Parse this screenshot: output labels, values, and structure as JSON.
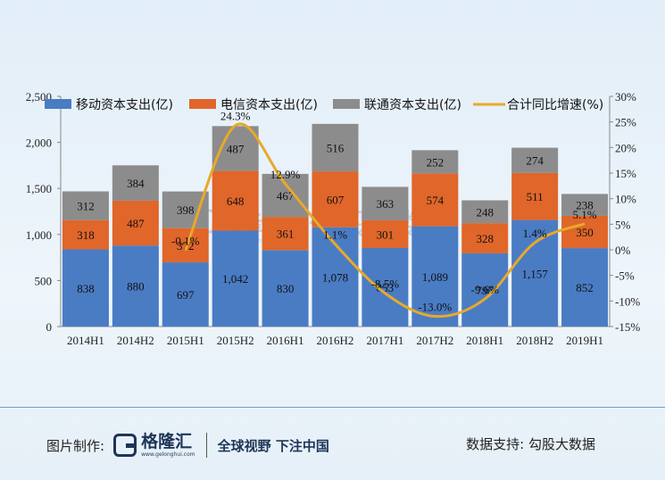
{
  "chart_data": {
    "type": "bar",
    "stacked": true,
    "categories": [
      "2014H1",
      "2014H2",
      "2015H1",
      "2015H2",
      "2016H1",
      "2016H2",
      "2017H1",
      "2017H2",
      "2018H1",
      "2018H2",
      "2019H1"
    ],
    "series": [
      {
        "name": "移动资本支出(亿)",
        "color": "#4a7cc4",
        "values": [
          838,
          880,
          697,
          1042,
          830,
          1078,
          853,
          1089,
          795,
          1157,
          852
        ],
        "labels": [
          "838",
          "880",
          "697",
          "1,042",
          "830",
          "1,078",
          "853",
          "1,089",
          "795",
          "1,157",
          "852"
        ]
      },
      {
        "name": "电信资本支出(亿)",
        "color": "#e0662a",
        "values": [
          318,
          487,
          372,
          648,
          361,
          607,
          301,
          574,
          328,
          511,
          350
        ],
        "labels": [
          "318",
          "487",
          "372",
          "648",
          "361",
          "607",
          "301",
          "574",
          "328",
          "511",
          "350"
        ]
      },
      {
        "name": "联通资本支出(亿)",
        "color": "#8c8c8c",
        "values": [
          312,
          384,
          398,
          487,
          467,
          516,
          363,
          252,
          248,
          274,
          238
        ],
        "labels": [
          "312",
          "384",
          "398",
          "487",
          "467",
          "516",
          "363",
          "252",
          "248",
          "274",
          "238"
        ]
      }
    ],
    "line": {
      "name": "合计同比增速(%)",
      "color": "#e8a92a",
      "x_start_index": 2,
      "values": [
        -0.1,
        24.3,
        12.9,
        1.1,
        -8.5,
        -13.0,
        -9.6,
        1.4,
        5.1
      ],
      "labels": [
        "-0.1%",
        "24.3%",
        "12.9%",
        "1.1%",
        "-8.5%",
        "-13.0%",
        "-9.6%",
        "1.4%",
        "5.1%"
      ]
    },
    "y_left": {
      "min": 0,
      "max": 2500,
      "ticks": [
        0,
        500,
        1000,
        1500,
        2000,
        2500
      ],
      "tick_labels": [
        "0",
        "500",
        "1,000",
        "1,500",
        "2,000",
        "2,500"
      ]
    },
    "y_right": {
      "min": -15,
      "max": 30,
      "ticks": [
        -15,
        -10,
        -5,
        0,
        5,
        10,
        15,
        20,
        25,
        30
      ],
      "tick_labels": [
        "-15%",
        "-10%",
        "-5%",
        "0%",
        "5%",
        "10%",
        "15%",
        "20%",
        "25%",
        "30%"
      ]
    },
    "legend_position": "top"
  },
  "watermark": {
    "brand": "格隆汇",
    "url": "www.gelonghui.com",
    "text": "勾股大数据"
  },
  "footer": {
    "made_by_label": "图片制作:",
    "logo_text": "格隆汇",
    "logo_url": "www.gelonghui.com",
    "slogan": "全球视野 下注中国",
    "support": "数据支持: 勾股大数据"
  }
}
